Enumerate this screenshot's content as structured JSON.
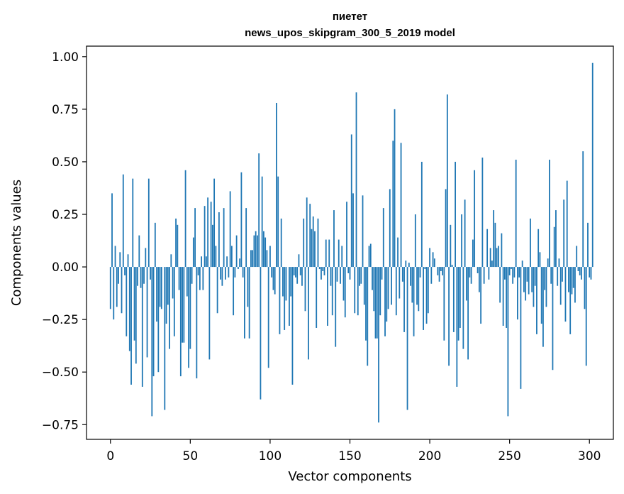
{
  "chart_data": {
    "type": "bar",
    "title_line1": "пиетет",
    "title_line2": "news_upos_skipgram_300_5_2019 model",
    "xlabel": "Vector components",
    "ylabel": "Components values",
    "xlim": [
      -15,
      315
    ],
    "ylim": [
      -0.82,
      1.05
    ],
    "xticks": [
      0,
      50,
      100,
      150,
      200,
      250,
      300
    ],
    "xtick_labels": [
      "0",
      "50",
      "100",
      "150",
      "200",
      "250",
      "300"
    ],
    "yticks": [
      -0.75,
      -0.5,
      -0.25,
      0.0,
      0.25,
      0.5,
      0.75,
      1.0
    ],
    "ytick_labels": [
      "−0.75",
      "−0.50",
      "−0.25",
      "0.00",
      "0.25",
      "0.50",
      "0.75",
      "1.00"
    ],
    "bar_color": "#1f77b4",
    "values": [
      -0.2,
      0.35,
      -0.25,
      0.1,
      -0.19,
      -0.08,
      0.07,
      -0.22,
      0.44,
      -0.04,
      -0.33,
      0.06,
      -0.4,
      -0.56,
      0.42,
      -0.35,
      -0.46,
      -0.09,
      0.15,
      -0.1,
      -0.57,
      -0.08,
      0.09,
      -0.43,
      0.42,
      -0.06,
      -0.71,
      -0.52,
      0.21,
      -0.26,
      -0.5,
      -0.19,
      -0.2,
      0.0,
      -0.68,
      -0.27,
      -0.18,
      -0.39,
      0.06,
      -0.15,
      -0.33,
      0.23,
      0.2,
      -0.11,
      -0.52,
      -0.36,
      -0.36,
      0.46,
      -0.14,
      -0.48,
      -0.39,
      -0.08,
      0.14,
      0.28,
      -0.53,
      -0.04,
      -0.11,
      0.05,
      -0.11,
      0.29,
      0.05,
      0.33,
      -0.44,
      0.31,
      0.2,
      0.42,
      0.1,
      -0.22,
      0.26,
      -0.06,
      -0.09,
      0.28,
      -0.06,
      0.05,
      -0.05,
      0.36,
      0.1,
      -0.23,
      -0.05,
      0.15,
      -0.01,
      0.04,
      0.45,
      -0.05,
      -0.34,
      0.28,
      -0.19,
      -0.34,
      0.08,
      0.08,
      0.15,
      0.17,
      0.15,
      0.54,
      -0.63,
      0.43,
      0.17,
      0.14,
      0.08,
      -0.48,
      0.1,
      -0.05,
      -0.11,
      -0.13,
      0.78,
      0.43,
      -0.32,
      0.23,
      -0.14,
      -0.3,
      -0.16,
      0.0,
      -0.28,
      -0.14,
      -0.56,
      -0.04,
      -0.05,
      -0.08,
      0.06,
      -0.04,
      -0.09,
      0.23,
      -0.21,
      0.33,
      -0.44,
      0.3,
      0.18,
      0.24,
      0.17,
      -0.29,
      0.23,
      -0.01,
      -0.06,
      -0.02,
      -0.04,
      0.13,
      -0.28,
      0.13,
      -0.09,
      -0.23,
      0.27,
      -0.38,
      -0.07,
      0.13,
      -0.08,
      0.1,
      -0.16,
      -0.24,
      0.31,
      -0.03,
      -0.06,
      0.63,
      0.35,
      -0.22,
      0.83,
      -0.23,
      -0.09,
      -0.08,
      0.34,
      -0.18,
      -0.35,
      -0.47,
      0.1,
      0.11,
      -0.11,
      -0.21,
      -0.34,
      -0.34,
      -0.74,
      -0.23,
      -0.06,
      0.28,
      -0.33,
      -0.26,
      -0.2,
      0.37,
      -0.18,
      0.6,
      0.75,
      -0.23,
      0.14,
      -0.15,
      0.59,
      -0.07,
      -0.31,
      0.03,
      -0.68,
      0.02,
      -0.09,
      -0.17,
      -0.33,
      0.25,
      -0.18,
      -0.21,
      -0.05,
      0.5,
      -0.3,
      -0.01,
      -0.27,
      -0.22,
      0.09,
      -0.08,
      0.07,
      0.04,
      0.0,
      -0.04,
      -0.07,
      -0.02,
      -0.04,
      -0.35,
      0.37,
      0.82,
      -0.47,
      0.2,
      0.01,
      -0.31,
      0.5,
      -0.57,
      -0.35,
      -0.29,
      0.25,
      -0.39,
      0.32,
      -0.16,
      -0.44,
      -0.05,
      -0.08,
      0.13,
      0.46,
      0.0,
      -0.03,
      -0.12,
      -0.27,
      0.52,
      -0.08,
      0.0,
      0.18,
      -0.06,
      0.09,
      0.03,
      0.27,
      0.21,
      0.09,
      0.1,
      -0.17,
      0.16,
      -0.28,
      -0.06,
      -0.29,
      -0.71,
      -0.04,
      -0.01,
      -0.08,
      -0.05,
      0.51,
      -0.25,
      -0.05,
      -0.58,
      0.03,
      -0.12,
      -0.16,
      -0.07,
      -0.13,
      0.23,
      -0.12,
      -0.19,
      -0.09,
      -0.32,
      0.18,
      0.07,
      -0.27,
      -0.38,
      -0.11,
      -0.19,
      0.04,
      0.51,
      -0.08,
      -0.49,
      0.19,
      0.27,
      -0.09,
      0.04,
      -0.18,
      -0.07,
      0.32,
      -0.26,
      0.41,
      -0.12,
      -0.32,
      -0.13,
      -0.1,
      -0.17,
      0.1,
      -0.02,
      -0.04,
      -0.06,
      0.55,
      -0.2,
      -0.47,
      0.21,
      -0.05,
      -0.06,
      0.97
    ]
  }
}
